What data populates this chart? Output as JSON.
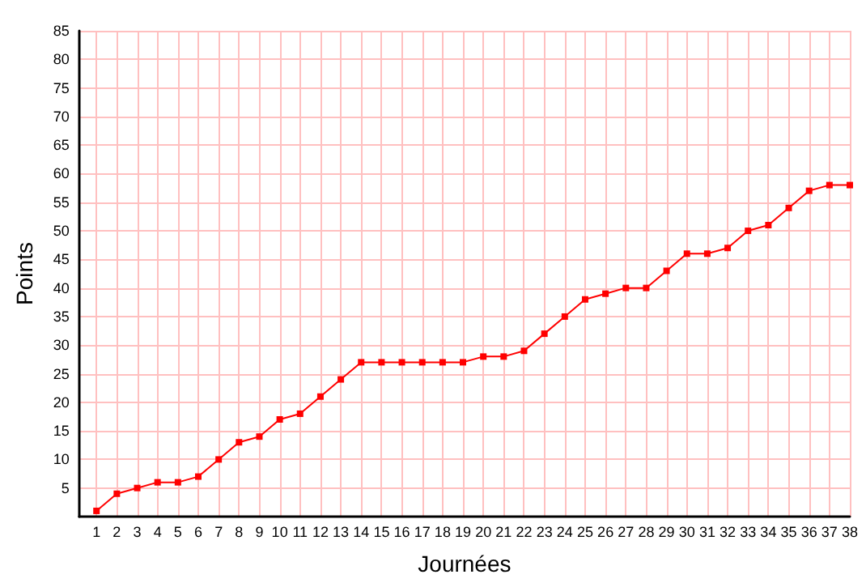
{
  "chart_data": {
    "type": "line",
    "xlabel": "Journées",
    "ylabel": "Points",
    "x": [
      1,
      2,
      3,
      4,
      5,
      6,
      7,
      8,
      9,
      10,
      11,
      12,
      13,
      14,
      15,
      16,
      17,
      18,
      19,
      20,
      21,
      22,
      23,
      24,
      25,
      26,
      27,
      28,
      29,
      30,
      31,
      32,
      33,
      34,
      35,
      36,
      37,
      38
    ],
    "series": [
      {
        "color": "#ff0000",
        "values": [
          1,
          4,
          5,
          6,
          6,
          7,
          10,
          13,
          14,
          17,
          18,
          21,
          24,
          27,
          27,
          27,
          27,
          27,
          27,
          28,
          28,
          29,
          32,
          35,
          38,
          39,
          40,
          40,
          43,
          46,
          46,
          47,
          50,
          51,
          54,
          57,
          58,
          58
        ]
      }
    ],
    "xlim": [
      0.15,
      38
    ],
    "xticks": [
      1,
      2,
      3,
      4,
      5,
      6,
      7,
      8,
      9,
      10,
      11,
      12,
      13,
      14,
      15,
      16,
      17,
      18,
      19,
      20,
      21,
      22,
      23,
      24,
      25,
      26,
      27,
      28,
      29,
      30,
      31,
      32,
      33,
      34,
      35,
      36,
      37,
      38
    ],
    "ylim": [
      0,
      85
    ],
    "yticks": [
      5,
      10,
      15,
      20,
      25,
      30,
      35,
      40,
      45,
      50,
      55,
      60,
      65,
      70,
      75,
      80,
      85
    ],
    "grid": true,
    "marker": "square",
    "line_style": "solid"
  }
}
